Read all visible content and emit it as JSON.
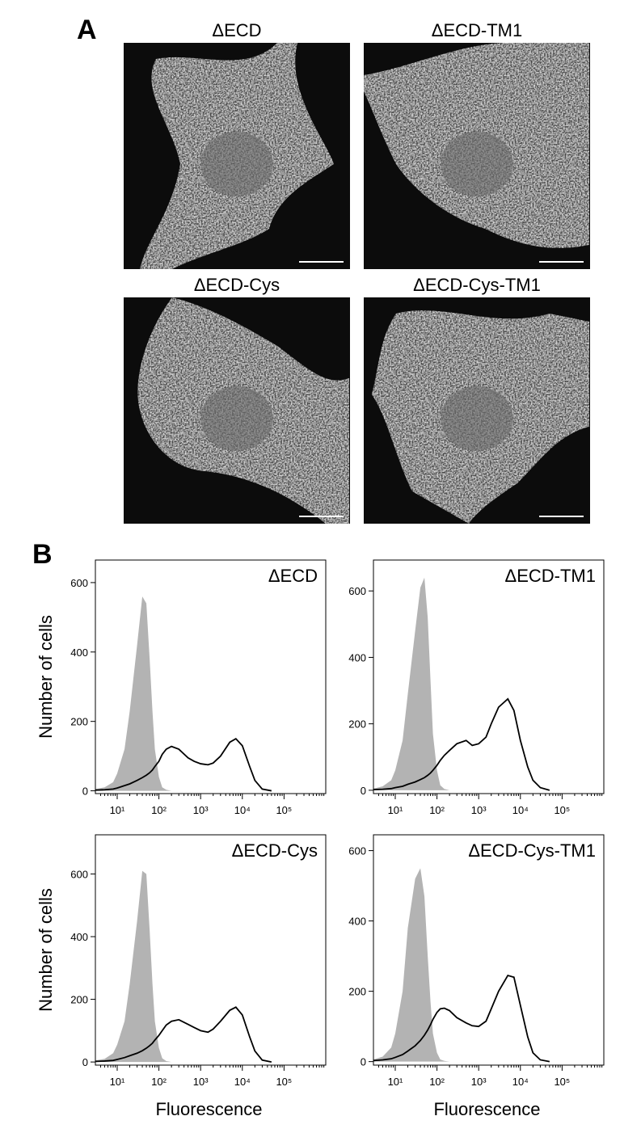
{
  "panel_a": {
    "label": "A",
    "images": [
      {
        "title": "ΔECD"
      },
      {
        "title": "ΔECD-TM1"
      },
      {
        "title": "ΔECD-Cys"
      },
      {
        "title": "ΔECD-Cys-TM1"
      }
    ]
  },
  "panel_b": {
    "label": "B"
  },
  "chart_data": [
    {
      "type": "line",
      "title": "ΔECD",
      "y_label": "Number of cells",
      "xscale": "log",
      "xlim": [
        3,
        1000000
      ],
      "ylim": [
        -8,
        665
      ],
      "xticks": [
        {
          "value": 10,
          "label": "10¹"
        },
        {
          "value": 100,
          "label": "10²"
        },
        {
          "value": 1000,
          "label": "10³"
        },
        {
          "value": 10000,
          "label": "10⁴"
        },
        {
          "value": 100000,
          "label": "10⁵"
        }
      ],
      "yticks": [
        0,
        200,
        400,
        600
      ],
      "x": [
        3,
        5,
        8,
        10,
        15,
        20,
        30,
        40,
        50,
        60,
        70,
        80,
        100,
        120,
        150,
        200,
        300,
        500,
        700,
        1000,
        1500,
        2000,
        3000,
        5000,
        7000,
        10000,
        15000,
        20000,
        30000,
        50000
      ],
      "series": [
        {
          "color": "#b3b3b3",
          "fill": true,
          "values": [
            5,
            10,
            25,
            50,
            120,
            230,
            420,
            560,
            540,
            380,
            230,
            120,
            40,
            10,
            3,
            0,
            0,
            0,
            0,
            0,
            0,
            0,
            0,
            0,
            0,
            0,
            0,
            0,
            0,
            0
          ]
        },
        {
          "color": "#000000",
          "fill": false,
          "values": [
            2,
            3,
            5,
            8,
            15,
            20,
            30,
            38,
            45,
            52,
            60,
            70,
            85,
            105,
            120,
            128,
            120,
            95,
            85,
            78,
            75,
            80,
            100,
            140,
            150,
            130,
            70,
            30,
            5,
            0
          ]
        }
      ]
    },
    {
      "type": "line",
      "title": "ΔECD-TM1",
      "xscale": "log",
      "xlim": [
        3,
        1000000
      ],
      "ylim": [
        -10,
        693
      ],
      "xticks": [
        {
          "value": 10,
          "label": "10¹"
        },
        {
          "value": 100,
          "label": "10²"
        },
        {
          "value": 1000,
          "label": "10³"
        },
        {
          "value": 10000,
          "label": "10⁴"
        },
        {
          "value": 100000,
          "label": "10⁵"
        }
      ],
      "yticks": [
        0,
        200,
        400,
        600
      ],
      "x": [
        3,
        5,
        8,
        10,
        15,
        20,
        30,
        40,
        50,
        60,
        70,
        80,
        100,
        120,
        150,
        200,
        300,
        500,
        700,
        1000,
        1500,
        2000,
        3000,
        5000,
        7000,
        10000,
        15000,
        20000,
        30000,
        50000
      ],
      "series": [
        {
          "color": "#b3b3b3",
          "fill": true,
          "values": [
            5,
            12,
            30,
            60,
            150,
            290,
            480,
            610,
            640,
            520,
            330,
            170,
            60,
            15,
            4,
            0,
            0,
            0,
            0,
            0,
            0,
            0,
            0,
            0,
            0,
            0,
            0,
            0,
            0,
            0
          ]
        },
        {
          "color": "#000000",
          "fill": false,
          "values": [
            2,
            3,
            5,
            8,
            12,
            18,
            25,
            32,
            38,
            45,
            52,
            60,
            75,
            90,
            105,
            120,
            140,
            150,
            135,
            140,
            160,
            200,
            250,
            275,
            240,
            150,
            70,
            30,
            8,
            0
          ]
        }
      ]
    },
    {
      "type": "line",
      "title": "ΔECD-Cys",
      "y_label": "Number of cells",
      "x_label": "Fluorescence",
      "xscale": "log",
      "xlim": [
        3,
        1000000
      ],
      "ylim": [
        -10,
        725
      ],
      "xticks": [
        {
          "value": 10,
          "label": "10¹"
        },
        {
          "value": 100,
          "label": "10²"
        },
        {
          "value": 1000,
          "label": "10³"
        },
        {
          "value": 10000,
          "label": "10⁴"
        },
        {
          "value": 100000,
          "label": "10⁵"
        }
      ],
      "yticks": [
        0,
        200,
        400,
        600
      ],
      "x": [
        3,
        5,
        8,
        10,
        15,
        20,
        30,
        40,
        50,
        60,
        70,
        80,
        100,
        120,
        150,
        200,
        300,
        500,
        700,
        1000,
        1500,
        2000,
        3000,
        5000,
        7000,
        10000,
        15000,
        20000,
        30000,
        50000
      ],
      "series": [
        {
          "color": "#b3b3b3",
          "fill": true,
          "values": [
            5,
            10,
            28,
            55,
            130,
            250,
            450,
            610,
            600,
            420,
            250,
            130,
            45,
            12,
            3,
            0,
            0,
            0,
            0,
            0,
            0,
            0,
            0,
            0,
            0,
            0,
            0,
            0,
            0,
            0
          ]
        },
        {
          "color": "#000000",
          "fill": false,
          "values": [
            2,
            3,
            5,
            8,
            14,
            20,
            28,
            36,
            44,
            52,
            60,
            70,
            85,
            100,
            118,
            130,
            135,
            120,
            110,
            100,
            95,
            105,
            130,
            165,
            175,
            150,
            80,
            35,
            6,
            0
          ]
        }
      ]
    },
    {
      "type": "line",
      "title": "ΔECD-Cys-TM1",
      "x_label": "Fluorescence",
      "xscale": "log",
      "xlim": [
        3,
        1000000
      ],
      "ylim": [
        -10,
        645
      ],
      "xticks": [
        {
          "value": 10,
          "label": "10¹"
        },
        {
          "value": 100,
          "label": "10²"
        },
        {
          "value": 1000,
          "label": "10³"
        },
        {
          "value": 10000,
          "label": "10⁴"
        },
        {
          "value": 100000,
          "label": "10⁵"
        }
      ],
      "yticks": [
        0,
        200,
        400,
        600
      ],
      "x": [
        3,
        5,
        8,
        10,
        15,
        20,
        30,
        40,
        50,
        60,
        70,
        80,
        100,
        120,
        150,
        200,
        300,
        500,
        700,
        1000,
        1500,
        2000,
        3000,
        5000,
        7000,
        10000,
        15000,
        20000,
        30000,
        50000
      ],
      "series": [
        {
          "color": "#b3b3b3",
          "fill": true,
          "values": [
            6,
            14,
            40,
            80,
            200,
            380,
            520,
            550,
            470,
            300,
            170,
            80,
            25,
            6,
            2,
            0,
            0,
            0,
            0,
            0,
            0,
            0,
            0,
            0,
            0,
            0,
            0,
            0,
            0,
            0
          ]
        },
        {
          "color": "#000000",
          "fill": false,
          "values": [
            3,
            5,
            8,
            12,
            20,
            30,
            45,
            60,
            75,
            90,
            105,
            120,
            140,
            150,
            152,
            145,
            125,
            110,
            102,
            100,
            115,
            150,
            200,
            245,
            240,
            160,
            70,
            25,
            5,
            0
          ]
        }
      ]
    }
  ]
}
